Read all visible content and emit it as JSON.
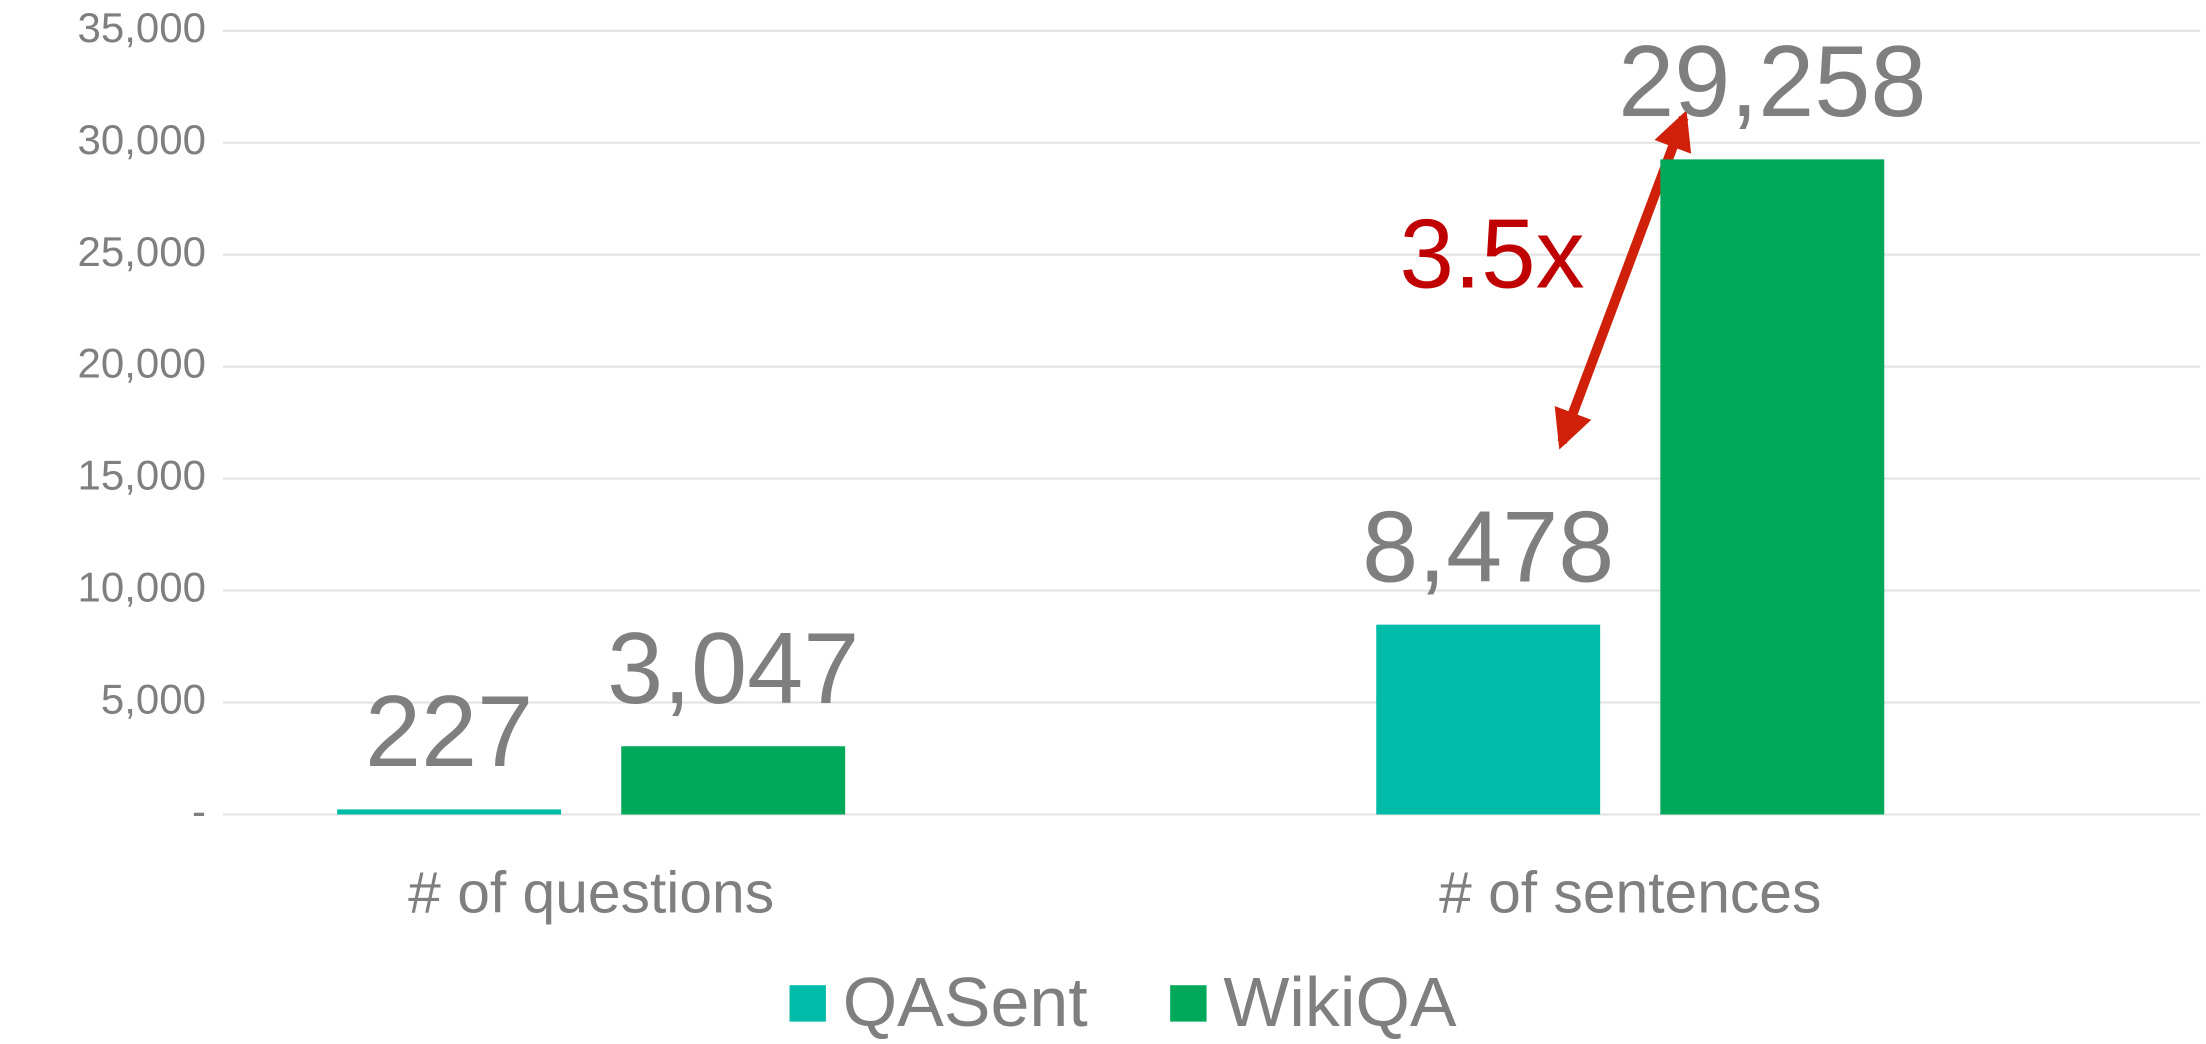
{
  "chart_data": {
    "type": "bar",
    "categories": [
      "# of questions",
      "# of sentences"
    ],
    "series": [
      {
        "name": "QASent",
        "color": "#00bba7",
        "values": [
          227,
          8478
        ],
        "value_labels": [
          "227",
          "8,478"
        ]
      },
      {
        "name": "WikiQA",
        "color": "#00a859",
        "values": [
          3047,
          29258
        ],
        "value_labels": [
          "3,047",
          "29,258"
        ]
      }
    ],
    "ylim": [
      0,
      35000
    ],
    "yticks": [
      {
        "value": 0,
        "label": "-"
      },
      {
        "value": 5000,
        "label": "5,000"
      },
      {
        "value": 10000,
        "label": "10,000"
      },
      {
        "value": 15000,
        "label": "15,000"
      },
      {
        "value": 20000,
        "label": "20,000"
      },
      {
        "value": 25000,
        "label": "25,000"
      },
      {
        "value": 30000,
        "label": "30,000"
      },
      {
        "value": 35000,
        "label": "35,000"
      }
    ],
    "grid": true,
    "legend": "bottom",
    "annotation": "3.5x"
  }
}
